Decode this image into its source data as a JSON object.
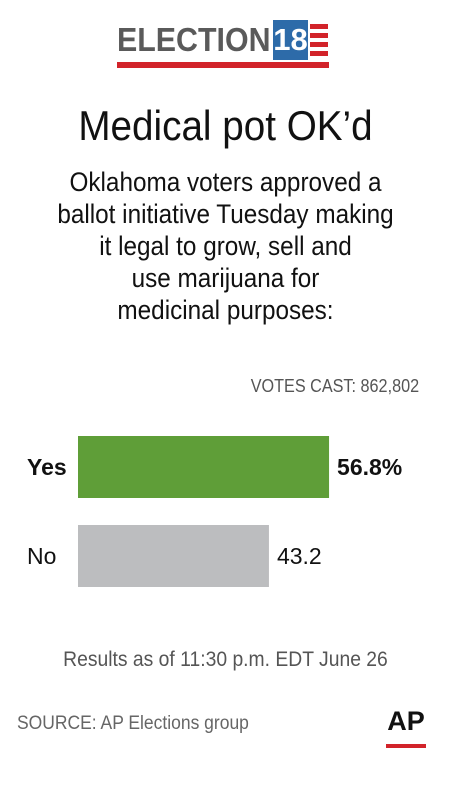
{
  "header": {
    "logo_word": "ELECTION",
    "logo_number": "18"
  },
  "headline": "Medical pot OK’d",
  "subtitle_lines": [
    "Oklahoma voters approved a",
    "ballot initiative Tuesday making",
    "it legal to grow, sell and",
    "use marijuana for",
    "medicinal purposes:"
  ],
  "votes_cast": "VOTES CAST: 862,802",
  "chart_data": {
    "type": "bar",
    "orientation": "horizontal",
    "categories": [
      "Yes",
      "No"
    ],
    "values": [
      56.8,
      43.2
    ],
    "value_labels": [
      "56.8%",
      "43.2"
    ],
    "colors": [
      "#5f9e38",
      "#bcbdbf"
    ],
    "winner": "Yes",
    "xlim": [
      0,
      100
    ],
    "grid": false
  },
  "results_note": "Results as of 11:30 p.m. EDT June 26",
  "source": "SOURCE: AP Elections group",
  "credit": "AP",
  "colors": {
    "accent_red": "#d2232a",
    "logo_blue": "#2d6ba9",
    "yes_green": "#5f9e38",
    "no_gray": "#bcbdbf"
  }
}
